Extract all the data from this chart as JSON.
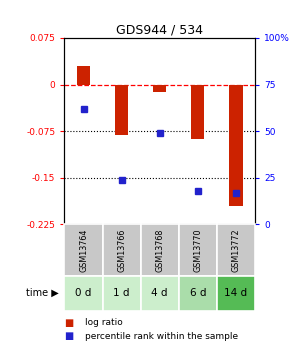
{
  "title": "GDS944 / 534",
  "samples": [
    "GSM13764",
    "GSM13766",
    "GSM13768",
    "GSM13770",
    "GSM13772"
  ],
  "time_labels": [
    "0 d",
    "1 d",
    "4 d",
    "6 d",
    "14 d"
  ],
  "log_ratio": [
    0.03,
    -0.082,
    -0.012,
    -0.088,
    -0.195
  ],
  "percentile_rank": [
    62,
    24,
    49,
    18,
    17
  ],
  "ylim_left": [
    -0.225,
    0.075
  ],
  "ylim_right": [
    0,
    100
  ],
  "yticks_left": [
    0.075,
    0,
    -0.075,
    -0.15,
    -0.225
  ],
  "yticks_right": [
    100,
    75,
    50,
    25,
    0
  ],
  "bar_color": "#cc2200",
  "dot_color": "#2222cc",
  "bg_color_gsm": "#c8c8c8",
  "bg_color_time_0": "#cceecc",
  "bg_color_time_1": "#cceecc",
  "bg_color_time_2": "#cceecc",
  "bg_color_time_3": "#aaddaa",
  "bg_color_time_4": "#55bb55",
  "legend_bar_label": "log ratio",
  "legend_dot_label": "percentile rank within the sample",
  "bar_width": 0.35
}
